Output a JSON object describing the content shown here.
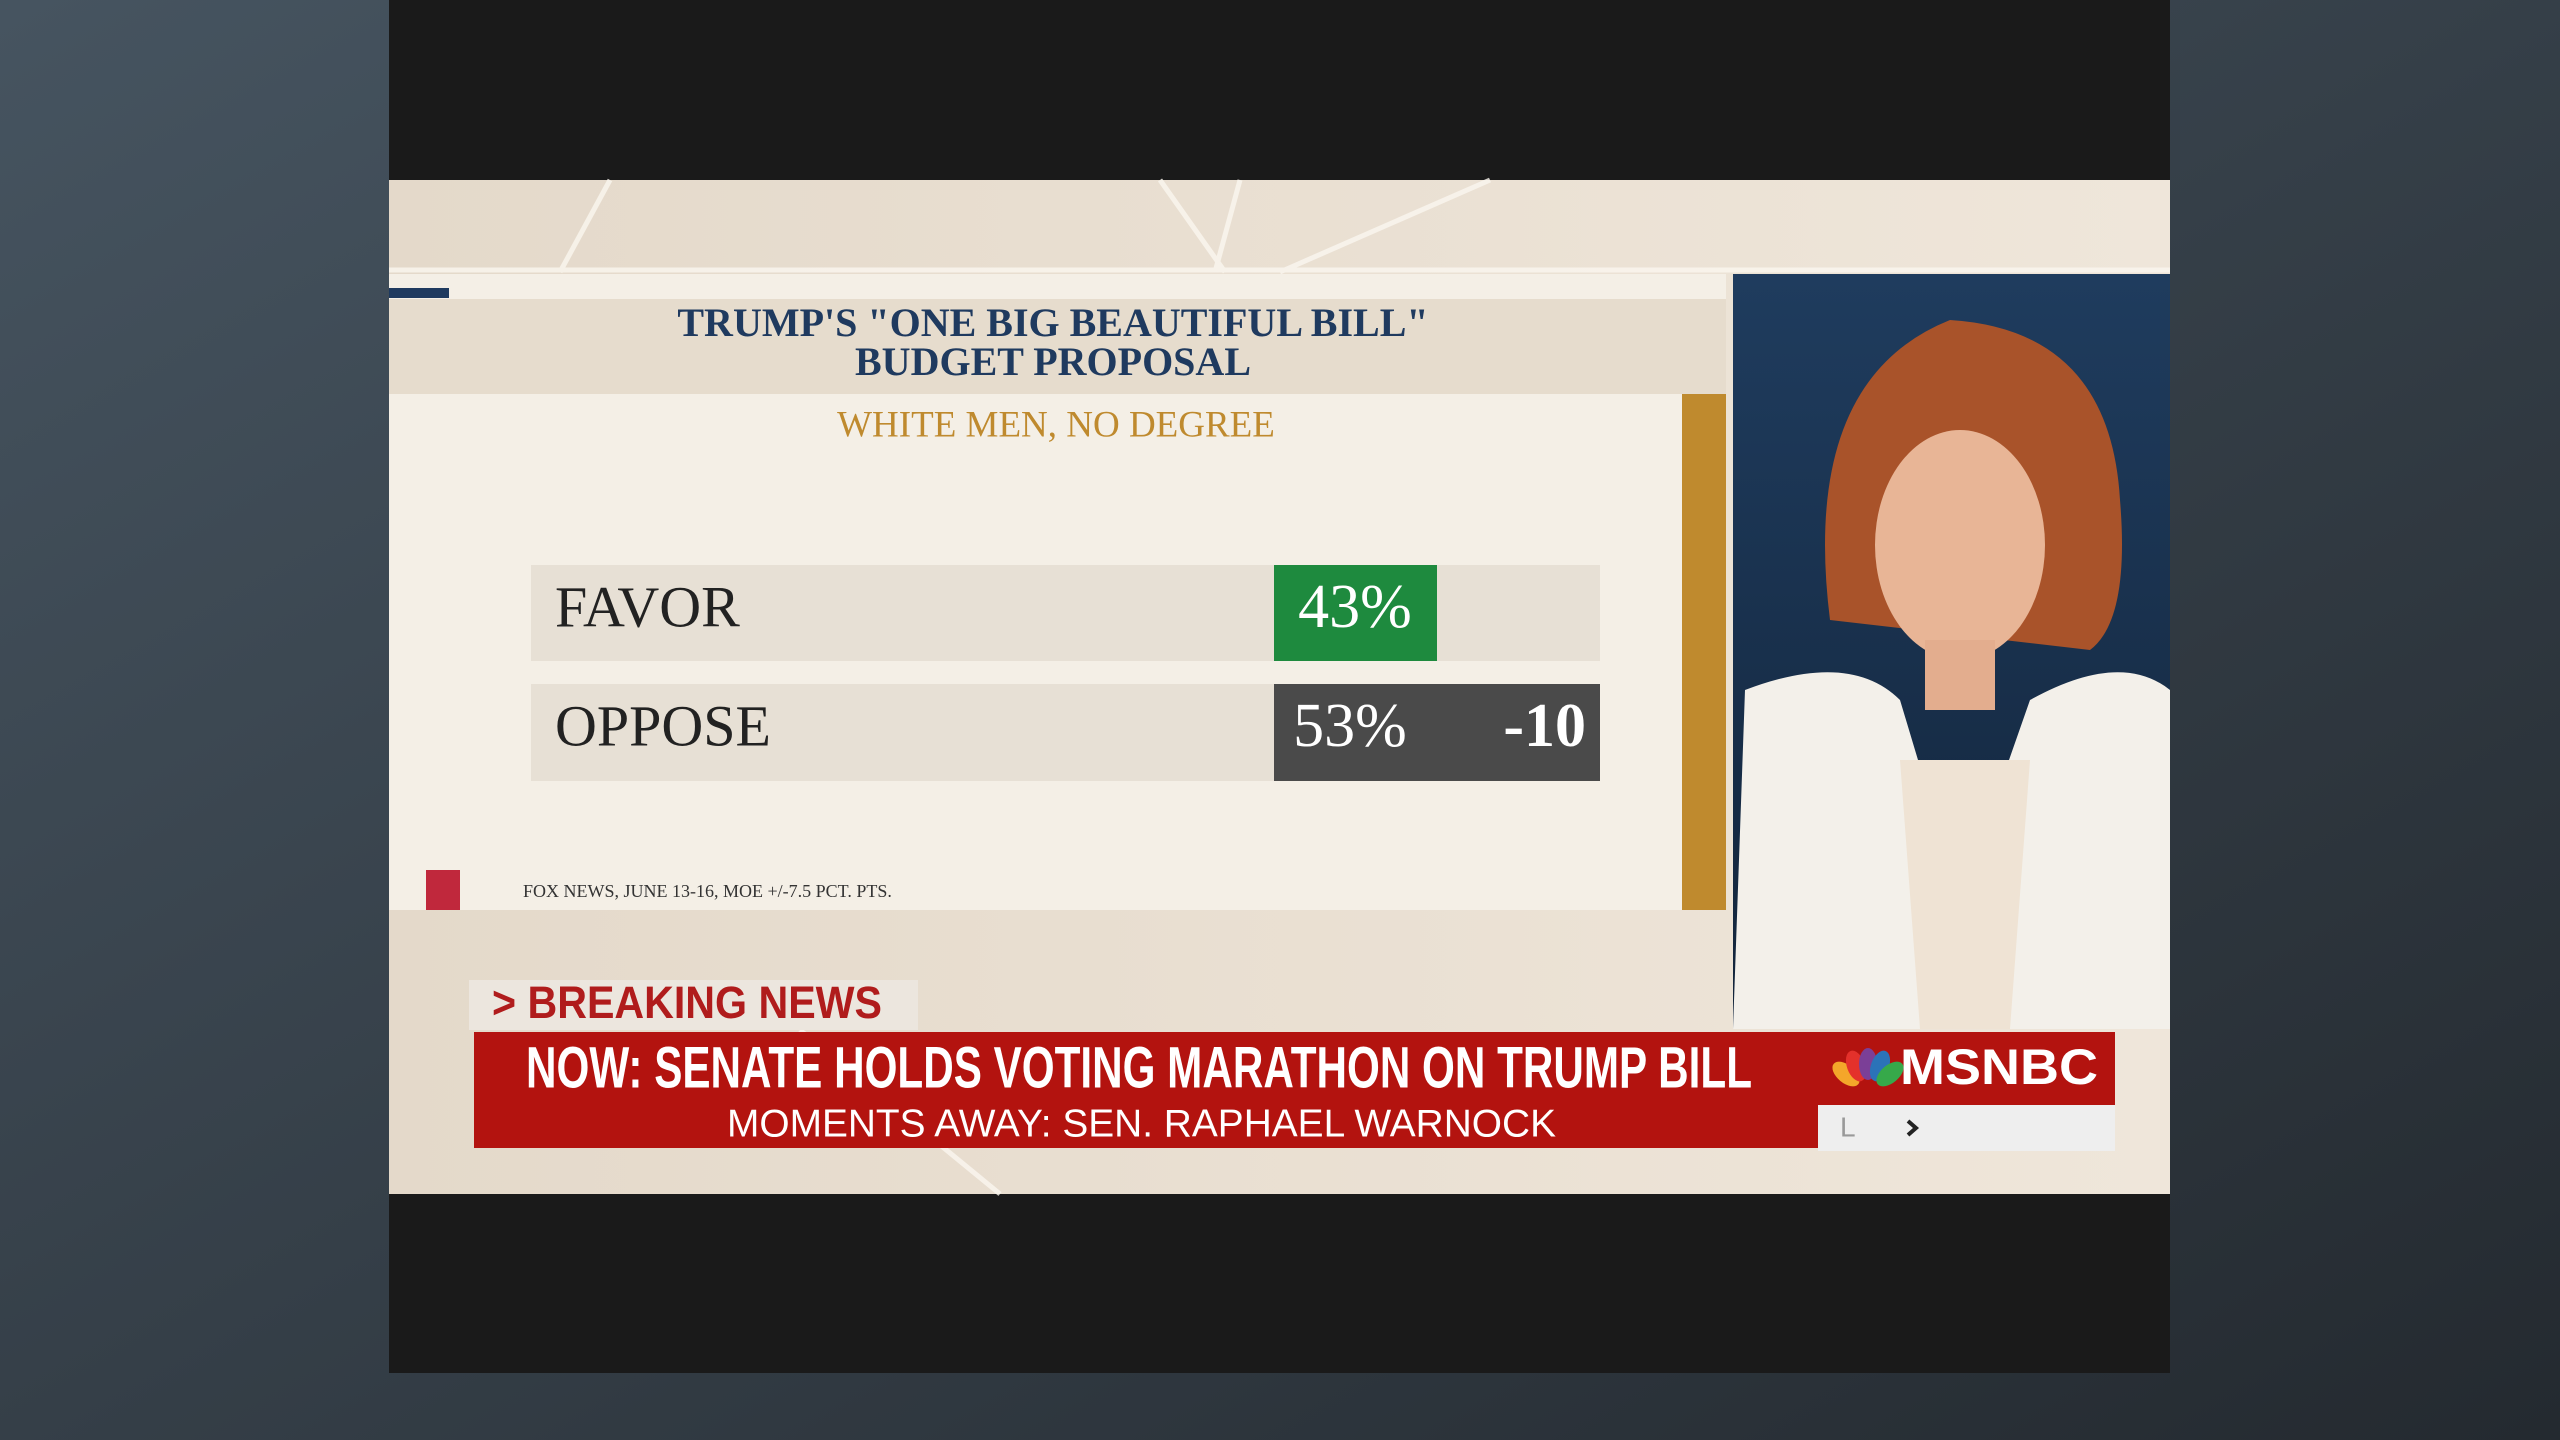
{
  "graphic": {
    "title_lines": [
      "TRUMP'S \"ONE BIG BEAUTIFUL BILL\"",
      "BUDGET PROPOSAL"
    ],
    "subtitle": "WHITE MEN, NO DEGREE",
    "rows": [
      {
        "label": "FAVOR",
        "value": "43%"
      },
      {
        "label": "OPPOSE",
        "value": "53%",
        "margin": "-10"
      }
    ],
    "source": "FOX NEWS, JUNE 13-16, MOE +/-7.5 PCT. PTS."
  },
  "lower_third": {
    "tag": "> BREAKING NEWS",
    "headline": "NOW: SENATE HOLDS VOTING MARATHON ON TRUMP BILL",
    "subline": "MOMENTS AWAY: SEN. RAPHAEL WARNOCK",
    "logo": "MSNBC",
    "ticker": "L"
  }
}
